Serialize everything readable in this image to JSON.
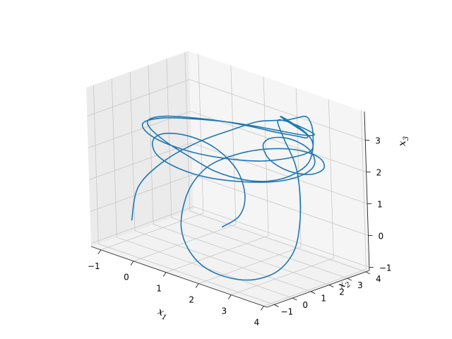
{
  "chart_data": {
    "type": "line3d",
    "title": "",
    "xlabel": "x",
    "xlabel_sub": "1",
    "ylabel": "x",
    "ylabel_sub": "2",
    "zlabel": "x",
    "zlabel_sub": "3",
    "xticks": [
      "−1",
      "0",
      "1",
      "2",
      "3",
      "4"
    ],
    "yticks": [
      "−1",
      "0",
      "1",
      "2",
      "3",
      "4"
    ],
    "zticks": [
      "−1",
      "0",
      "1",
      "2",
      "3"
    ],
    "xlim": [
      -1.3,
      4.1
    ],
    "ylim": [
      -1.4,
      4.2
    ],
    "zlim": [
      -1.1,
      3.9
    ],
    "grid": true,
    "series": [
      {
        "color": "#1f77b4",
        "x": [
          -0.7,
          -0.8,
          -0.4,
          0.3,
          1.0,
          1.6,
          2.1,
          2.4,
          2.6,
          2.7,
          2.8,
          2.9,
          3.0,
          3.2,
          3.4,
          3.6,
          3.7,
          3.5,
          3.1,
          2.5,
          1.7,
          0.8,
          -0.1,
          -0.8,
          -1.1,
          -0.9,
          -0.3,
          0.4,
          1.1,
          1.8,
          2.4,
          2.8,
          2.9,
          2.7,
          2.4,
          2.3,
          2.5,
          2.9,
          3.2,
          3.3,
          3.0,
          2.4,
          1.6,
          0.7,
          -0.2,
          -0.8,
          -1.0,
          -0.7,
          -0.1,
          0.6,
          1.3,
          2.0,
          2.6,
          3.0,
          3.1,
          2.8,
          2.4,
          2.2,
          2.5,
          3.0,
          3.4,
          3.7,
          3.9,
          3.8,
          3.4,
          2.8,
          2.1,
          1.5,
          1.0,
          0.7,
          0.6,
          0.8,
          1.3,
          1.9,
          2.6,
          3.2,
          3.6,
          3.8,
          3.6,
          3.1,
          2.6,
          2.3,
          2.4,
          2.8,
          3.3,
          3.6,
          3.5,
          3.0,
          2.2,
          1.3,
          0.5,
          -0.2,
          -0.6,
          -0.6,
          -0.2,
          0.4,
          1.0,
          1.4,
          1.5,
          1.3
        ],
        "y": [
          -0.2,
          0.4,
          1.2,
          1.9,
          2.4,
          2.7,
          2.8,
          2.9,
          3.0,
          3.1,
          3.2,
          3.2,
          3.1,
          2.9,
          2.6,
          2.2,
          1.7,
          1.1,
          0.6,
          0.3,
          0.2,
          0.4,
          0.7,
          1.1,
          1.6,
          2.2,
          2.7,
          3.1,
          3.3,
          3.4,
          3.4,
          3.3,
          3.1,
          2.9,
          2.8,
          2.8,
          2.9,
          3.0,
          2.9,
          2.6,
          2.1,
          1.5,
          1.0,
          0.7,
          0.6,
          0.8,
          1.2,
          1.8,
          2.4,
          2.9,
          3.2,
          3.4,
          3.4,
          3.3,
          3.1,
          2.9,
          2.8,
          2.8,
          2.6,
          2.3,
          1.8,
          1.2,
          0.5,
          -0.2,
          -0.8,
          -1.1,
          -1.2,
          -1.0,
          -0.5,
          0.2,
          0.9,
          1.5,
          2.0,
          2.4,
          2.7,
          2.8,
          2.7,
          2.4,
          2.0,
          1.7,
          1.6,
          1.8,
          2.1,
          2.4,
          2.5,
          2.3,
          1.9,
          1.4,
          0.9,
          0.5,
          0.3,
          0.4,
          0.9,
          1.5,
          2.1,
          2.5,
          2.6,
          2.3,
          1.8,
          1.2
        ],
        "z": [
          -0.3,
          0.6,
          1.4,
          2.1,
          2.6,
          3.0,
          3.2,
          3.3,
          3.4,
          3.45,
          3.5,
          3.5,
          3.5,
          3.4,
          3.2,
          2.9,
          2.6,
          2.3,
          2.1,
          2.0,
          2.0,
          2.1,
          2.2,
          2.3,
          2.35,
          2.4,
          2.45,
          2.5,
          2.55,
          2.6,
          2.7,
          2.8,
          3.0,
          3.2,
          3.35,
          3.4,
          3.3,
          3.1,
          2.9,
          2.7,
          2.5,
          2.3,
          2.2,
          2.15,
          2.2,
          2.3,
          2.4,
          2.5,
          2.55,
          2.6,
          2.65,
          2.7,
          2.8,
          2.95,
          3.1,
          3.25,
          3.3,
          3.2,
          2.8,
          2.2,
          1.5,
          0.8,
          0.2,
          -0.3,
          -0.6,
          -0.7,
          -0.6,
          -0.3,
          0.1,
          0.6,
          1.1,
          1.6,
          2.0,
          2.3,
          2.5,
          2.55,
          2.5,
          2.35,
          2.2,
          2.2,
          2.4,
          2.7,
          2.9,
          2.95,
          2.8,
          2.5,
          2.2,
          1.9,
          1.7,
          1.6,
          1.65,
          1.8,
          2.0,
          2.1,
          2.05,
          1.8,
          1.3,
          0.7,
          0.2,
          -0.1
        ]
      }
    ]
  }
}
